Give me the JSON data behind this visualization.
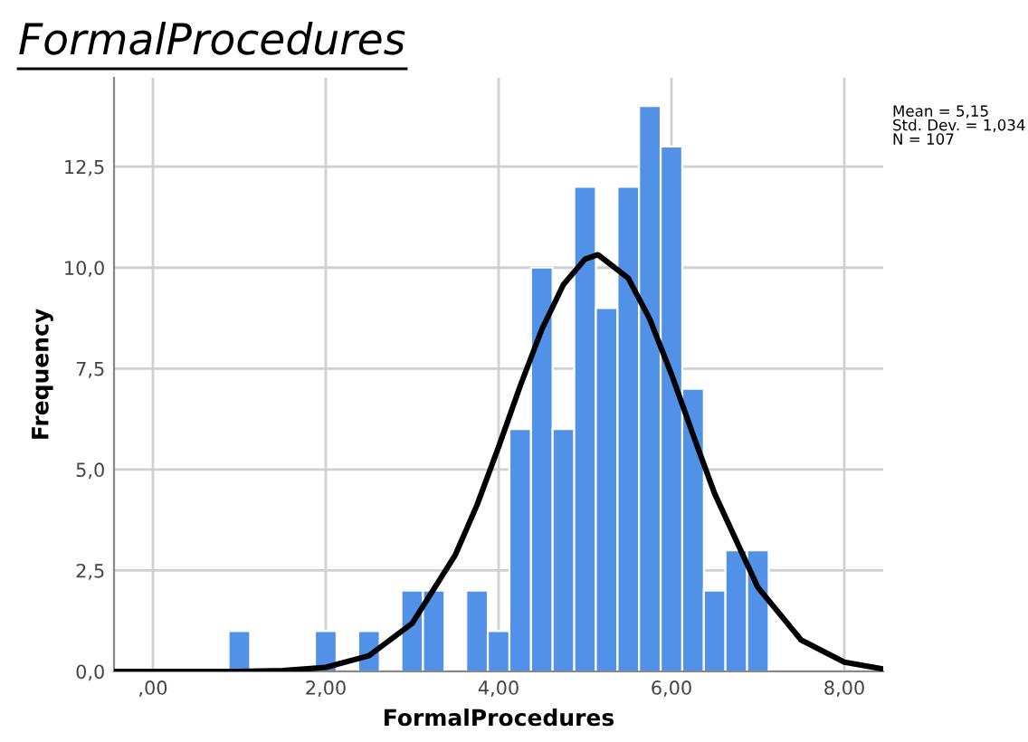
{
  "chart_data": {
    "type": "histogram",
    "title": "FormalProcedures",
    "xlabel": "FormalProcedures",
    "ylabel": "Frequency",
    "bins": [
      0.875,
      1.125,
      1.375,
      1.625,
      1.875,
      2.125,
      2.375,
      2.625,
      2.875,
      3.125,
      3.375,
      3.625,
      3.875,
      4.125,
      4.375,
      4.625,
      4.875,
      5.125,
      5.375,
      5.625,
      5.875,
      6.125,
      6.375,
      6.625,
      6.875,
      7.125
    ],
    "values": [
      1,
      0,
      0,
      0,
      1,
      0,
      1,
      0,
      2,
      2,
      0,
      2,
      1,
      6,
      10,
      6,
      12,
      9,
      12,
      14,
      13,
      7,
      2,
      3,
      3
    ],
    "color": "#5191e8",
    "series": [
      {
        "type": "line",
        "color": "#000000",
        "x": [
          -0.45,
          1.0,
          1.5,
          2.0,
          2.5,
          3.0,
          3.5,
          3.75,
          4.0,
          4.25,
          4.5,
          4.75,
          5.0,
          5.15,
          5.5,
          5.75,
          6.0,
          6.25,
          6.5,
          7.0,
          7.5,
          8.0,
          8.45
        ],
        "values": [
          0.0,
          0.0,
          0.02,
          0.1,
          0.39,
          1.19,
          2.89,
          4.12,
          5.56,
          7.07,
          8.47,
          9.58,
          10.21,
          10.32,
          9.74,
          8.72,
          7.36,
          5.86,
          4.4,
          2.08,
          0.78,
          0.23,
          0.06
        ]
      }
    ],
    "xlim": [
      -0.45,
      8.45
    ],
    "ylim": [
      0,
      14.7
    ],
    "xticks": [
      {
        "value": 0,
        "label": ",00"
      },
      {
        "value": 2,
        "label": "2,00"
      },
      {
        "value": 4,
        "label": "4,00"
      },
      {
        "value": 6,
        "label": "6,00"
      },
      {
        "value": 8,
        "label": "8,00"
      }
    ],
    "yticks": [
      {
        "value": 0,
        "label": "0,0"
      },
      {
        "value": 2.5,
        "label": "2,5"
      },
      {
        "value": 5,
        "label": "5,0"
      },
      {
        "value": 7.5,
        "label": "7,5"
      },
      {
        "value": 10,
        "label": "10,0"
      },
      {
        "value": 12.5,
        "label": "12,5"
      }
    ],
    "grid": true,
    "annotations": [
      "Mean = 5,15\nStd. Dev. = 1,034\nN = 107"
    ]
  }
}
